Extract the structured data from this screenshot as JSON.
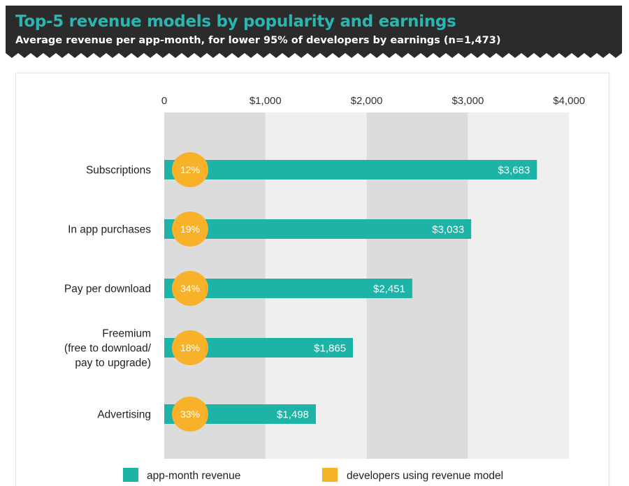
{
  "header": {
    "title": "Top-5 revenue models by popularity and earnings",
    "subtitle": "Average revenue per app-month, for lower 95% of developers by earnings (n=1,473)"
  },
  "colors": {
    "header_bg": "#2b2b2b",
    "title": "#29b6b0",
    "bar": "#1db3a6",
    "dot": "#f7b22a",
    "band_dark": "#dcdcdc",
    "band_light": "#efefef"
  },
  "chart_data": {
    "type": "bar",
    "orientation": "horizontal",
    "title": "Top-5 revenue models by popularity and earnings",
    "subtitle": "Average revenue per app-month, for lower 95% of developers by earnings (n=1,473)",
    "xlim": [
      0,
      4000
    ],
    "xticks": [
      0,
      1000,
      2000,
      3000,
      4000
    ],
    "xtick_labels": [
      "0",
      "$1,000",
      "$2,000",
      "$3,000",
      "$4,000"
    ],
    "categories": [
      [
        "Subscriptions"
      ],
      [
        "In app purchases"
      ],
      [
        "Pay per download"
      ],
      [
        "Freemium",
        "(free to download/",
        "pay to upgrade)"
      ],
      [
        "Advertising"
      ]
    ],
    "series": [
      {
        "name": "app-month revenue",
        "values": [
          3683,
          3033,
          2451,
          1865,
          1498
        ],
        "labels": [
          "$3,683",
          "$3,033",
          "$2,451",
          "$1,865",
          "$1,498"
        ]
      },
      {
        "name": "developers using revenue model",
        "values": [
          12,
          19,
          34,
          18,
          33
        ],
        "labels": [
          "12%",
          "19%",
          "34%",
          "18%",
          "33%"
        ]
      }
    ],
    "legend": [
      "app-month revenue",
      "developers using revenue model"
    ],
    "legend_position": "bottom"
  }
}
